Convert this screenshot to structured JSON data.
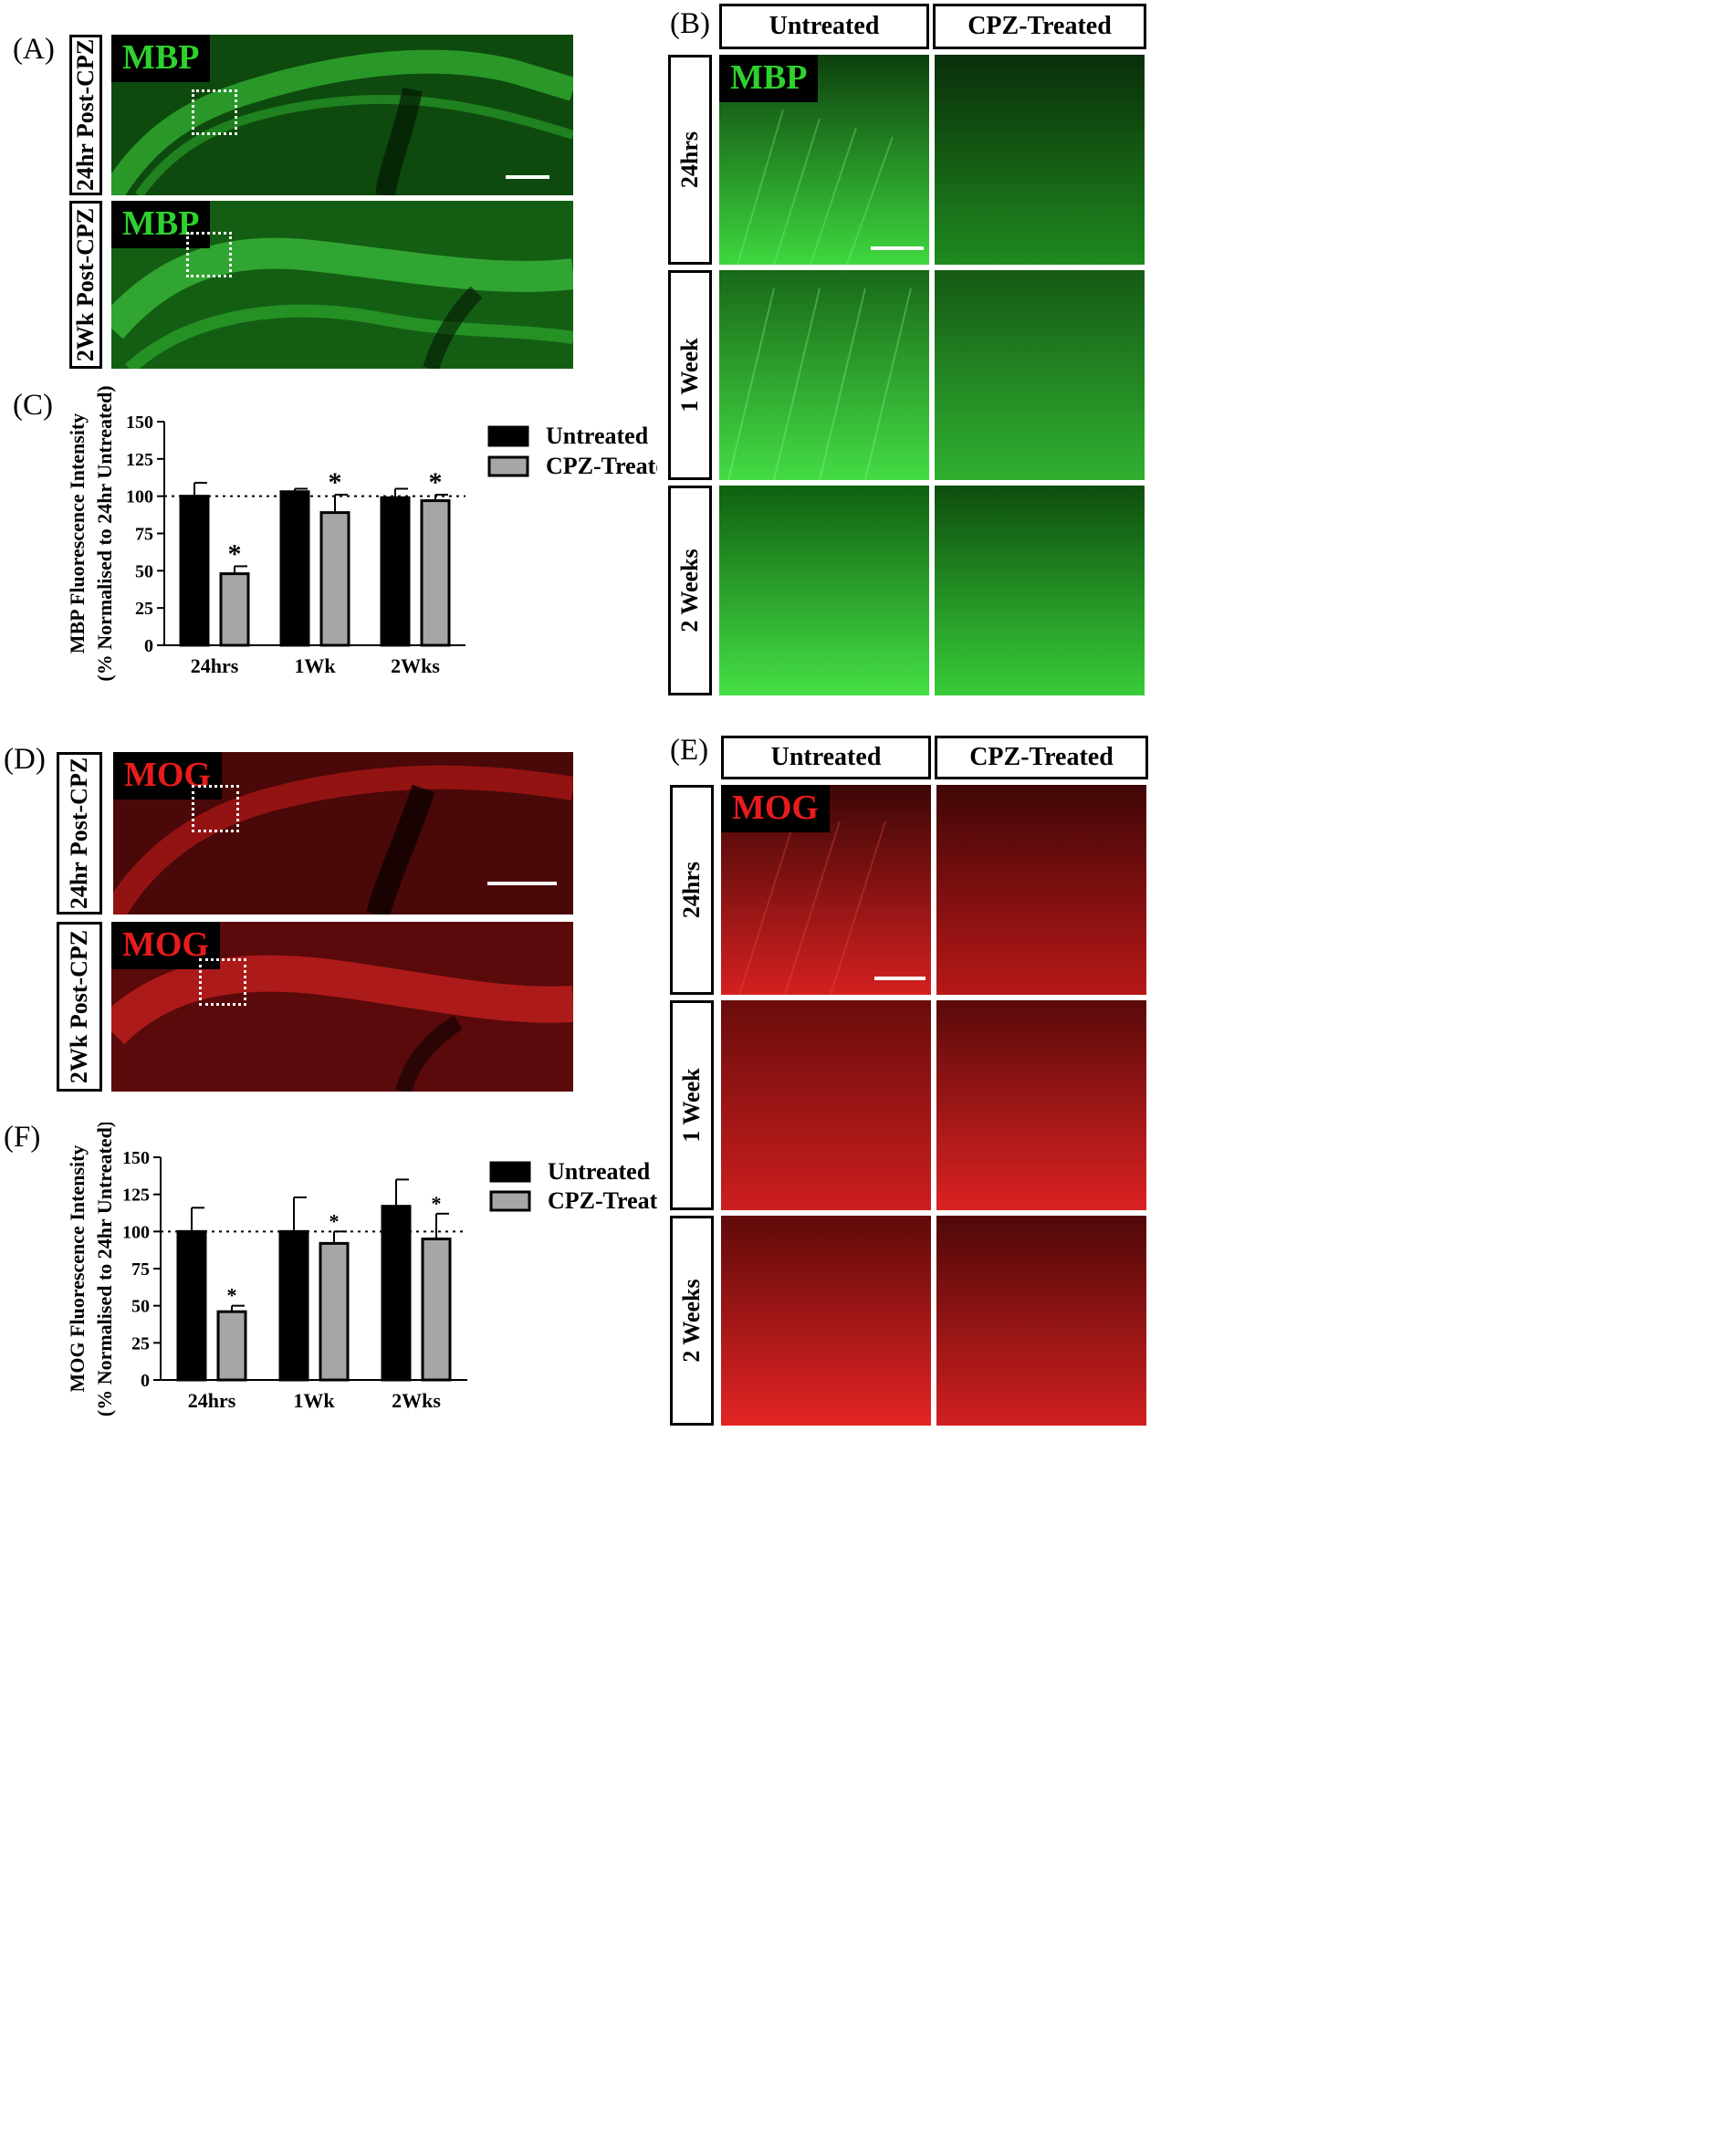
{
  "panel_labels": {
    "A": "(A)",
    "B": "(B)",
    "C": "(C)",
    "D": "(D)",
    "E": "(E)",
    "F": "(F)"
  },
  "panel_a": {
    "stain": "MBP",
    "rows": [
      "24hr Post-CPZ",
      "2Wk Post-CPZ"
    ],
    "color": "#1f8c1f"
  },
  "panel_b": {
    "stain": "MBP",
    "columns": [
      "Untreated",
      "CPZ-Treated"
    ],
    "rows": [
      "24hrs",
      "1 Week",
      "2 Weeks"
    ],
    "color": "#22c022"
  },
  "panel_d": {
    "stain": "MOG",
    "rows": [
      "24hr Post-CPZ",
      "2Wk Post-CPZ"
    ],
    "color": "#c41414"
  },
  "panel_e": {
    "stain": "MOG",
    "columns": [
      "Untreated",
      "CPZ-Treated"
    ],
    "rows": [
      "24hrs",
      "1 Week",
      "2 Weeks"
    ],
    "color": "#d81c1c"
  },
  "chart_data": [
    {
      "type": "bar",
      "panel": "C",
      "categories": [
        "24hrs",
        "1Wk",
        "2Wks"
      ],
      "series": [
        {
          "name": "Untreated",
          "values": [
            100,
            103,
            99
          ],
          "errors": [
            9,
            2,
            6
          ],
          "color": "#000000"
        },
        {
          "name": "CPZ-Treated",
          "values": [
            48,
            89,
            97
          ],
          "errors": [
            5,
            12,
            4
          ],
          "color": "#a6a6a6"
        }
      ],
      "significance": [
        {
          "series": 1,
          "index": 0,
          "label": "*"
        },
        {
          "series": 1,
          "index": 1,
          "label": "*"
        },
        {
          "series": 1,
          "index": 2,
          "label": "*"
        }
      ],
      "ylabel": "MBP Fluorescence Intensity",
      "ylabel2": "(% Normalised to 24hr Untreated)",
      "ylim": [
        0,
        150
      ],
      "yticks": [
        0,
        25,
        50,
        75,
        100,
        125,
        150
      ],
      "reference_line": 100,
      "legend": "right"
    },
    {
      "type": "bar",
      "panel": "F",
      "categories": [
        "24hrs",
        "1Wk",
        "2Wks"
      ],
      "series": [
        {
          "name": "Untreated",
          "values": [
            100,
            100,
            117
          ],
          "errors": [
            16,
            23,
            18
          ],
          "color": "#000000"
        },
        {
          "name": "CPZ-Treated",
          "values": [
            46,
            92,
            95
          ],
          "errors": [
            4,
            8,
            17
          ],
          "color": "#a6a6a6"
        }
      ],
      "significance": [
        {
          "series": 1,
          "index": 0,
          "label": "*"
        },
        {
          "series": 1,
          "index": 1,
          "label": "*"
        },
        {
          "series": 1,
          "index": 2,
          "label": "*"
        }
      ],
      "ylabel": "MOG Fluorescence Intensity",
      "ylabel2": "(% Normalised to 24hr Untreated)",
      "ylim": [
        0,
        150
      ],
      "yticks": [
        0,
        25,
        50,
        75,
        100,
        125,
        150
      ],
      "reference_line": 100,
      "legend": "right"
    }
  ]
}
